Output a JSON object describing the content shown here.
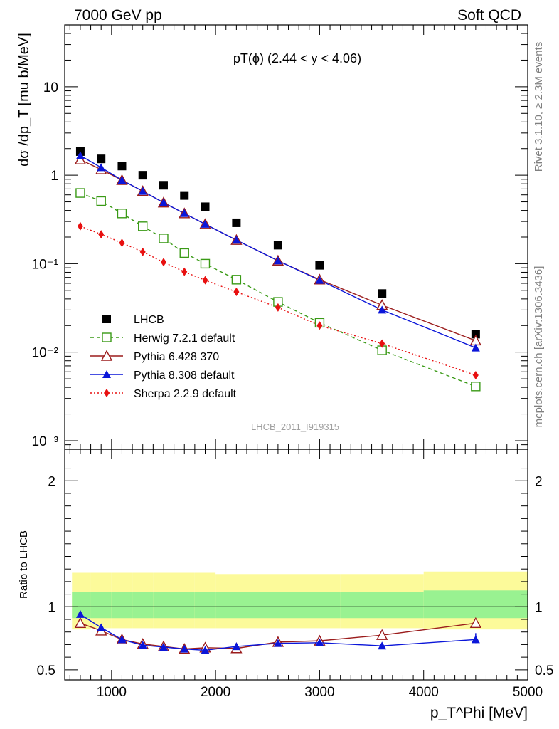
{
  "header": {
    "left": "7000 GeV pp",
    "right": "Soft QCD"
  },
  "side": {
    "rivet": "Rivet 3.1.10, ≥ 2.3M events",
    "mcplots": "mcplots.cern.ch [arXiv:1306.3436]"
  },
  "analysis_id": "LHCB_2011_I919315",
  "chart_data": [
    {
      "type": "line",
      "title": "pT(ϕ) (2.44 < y < 4.06)",
      "ylabel": "dσ /dp_T [mu b/MeV]",
      "xlim": [
        550,
        5000
      ],
      "ylim": [
        0.0008,
        50
      ],
      "yscale": "log",
      "yticks": [
        "10⁻³",
        "10⁻²",
        "10⁻¹",
        "1",
        "10"
      ],
      "legend_position": "lower-left",
      "x": [
        700,
        900,
        1100,
        1300,
        1500,
        1700,
        1900,
        2200,
        2600,
        3000,
        3600,
        4500
      ],
      "series": [
        {
          "name": "LHCB",
          "color": "#000000",
          "marker": "square-filled",
          "line": "none",
          "values": [
            1.85,
            1.53,
            1.27,
            1.0,
            0.77,
            0.59,
            0.44,
            0.29,
            0.162,
            0.096,
            0.046,
            0.016
          ]
        },
        {
          "name": "Herwig 7.2.1 default",
          "color": "#3a9a16",
          "marker": "square-open",
          "line": "dashed",
          "values": [
            0.63,
            0.51,
            0.37,
            0.265,
            0.193,
            0.132,
            0.1,
            0.066,
            0.037,
            0.0215,
            0.0105,
            0.0041
          ]
        },
        {
          "name": "Pythia 6.428 370",
          "color": "#9b1c1c",
          "marker": "triangle-open",
          "line": "solid",
          "values": [
            1.5,
            1.16,
            0.88,
            0.66,
            0.49,
            0.37,
            0.28,
            0.185,
            0.108,
            0.066,
            0.034,
            0.0135
          ]
        },
        {
          "name": "Pythia 8.308 default",
          "color": "#0b16d9",
          "marker": "triangle-filled",
          "line": "solid",
          "values": [
            1.67,
            1.22,
            0.88,
            0.66,
            0.49,
            0.37,
            0.28,
            0.185,
            0.108,
            0.065,
            0.03,
            0.0112
          ]
        },
        {
          "name": "Sherpa 2.2.9 default",
          "color": "#e81010",
          "marker": "diamond-filled",
          "line": "dotted",
          "values": [
            0.265,
            0.215,
            0.172,
            0.136,
            0.104,
            0.081,
            0.065,
            0.048,
            0.032,
            0.02,
            0.0125,
            0.0055
          ]
        }
      ]
    },
    {
      "type": "line",
      "ylabel": "Ratio to LHCB",
      "xlabel": "p_T^Phi [MeV]",
      "xlim": [
        550,
        5000
      ],
      "ylim": [
        0.42,
        2.25
      ],
      "xticks": [
        1000,
        2000,
        3000,
        4000,
        5000
      ],
      "yticks": [
        0.5,
        1,
        2
      ],
      "x": [
        700,
        900,
        1100,
        1300,
        1500,
        1700,
        1900,
        2200,
        2600,
        3000,
        3600,
        4500
      ],
      "bands": {
        "x_edges": [
          620,
          800,
          1000,
          1200,
          1400,
          1600,
          1800,
          2000,
          2400,
          2800,
          3200,
          4000,
          5000
        ],
        "stat_low": [
          0.91,
          0.91,
          0.91,
          0.91,
          0.91,
          0.91,
          0.91,
          0.91,
          0.91,
          0.91,
          0.91,
          0.91
        ],
        "stat_high": [
          1.12,
          1.12,
          1.12,
          1.12,
          1.12,
          1.12,
          1.12,
          1.12,
          1.12,
          1.12,
          1.12,
          1.13
        ],
        "total_low": [
          0.82,
          0.83,
          0.83,
          0.83,
          0.83,
          0.83,
          0.83,
          0.83,
          0.83,
          0.83,
          0.83,
          0.82
        ],
        "total_high": [
          1.27,
          1.27,
          1.27,
          1.27,
          1.27,
          1.27,
          1.27,
          1.26,
          1.26,
          1.26,
          1.26,
          1.28
        ],
        "stat_color": "#99f291",
        "total_color": "#fcfa9a"
      },
      "series": [
        {
          "name": "Pythia 6.428 370",
          "color": "#9b1c1c",
          "marker": "triangle-open",
          "values": [
            0.87,
            0.81,
            0.74,
            0.705,
            0.685,
            0.665,
            0.675,
            0.67,
            0.72,
            0.73,
            0.775,
            0.87
          ]
        },
        {
          "name": "Pythia 8.308 default",
          "color": "#0b16d9",
          "marker": "triangle-filled",
          "values": [
            0.94,
            0.835,
            0.74,
            0.695,
            0.68,
            0.665,
            0.655,
            0.685,
            0.71,
            0.715,
            0.69,
            0.74
          ]
        }
      ]
    }
  ]
}
